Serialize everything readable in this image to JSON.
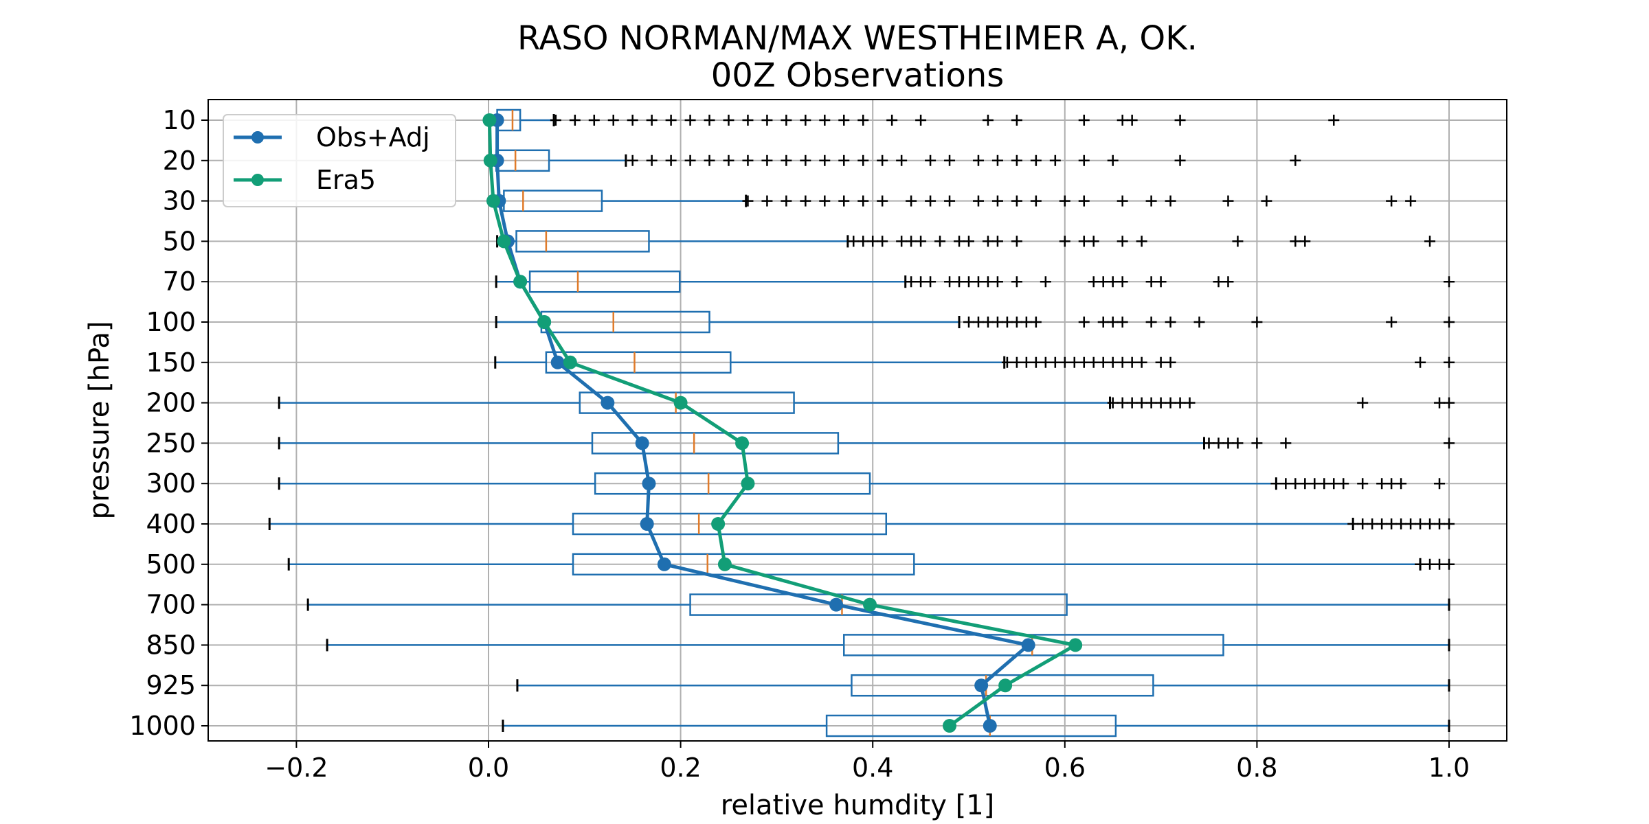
{
  "chart_data": {
    "type": "box",
    "orientation": "horizontal",
    "title": "RASO NORMAN/MAX WESTHEIMER A, OK.",
    "subtitle": "00Z Observations",
    "xlabel": "relative humdity [1]",
    "ylabel": "pressure [hPa]",
    "xlim": [
      -0.29,
      1.06
    ],
    "xticks": [
      -0.2,
      0.0,
      0.2,
      0.4,
      0.6,
      0.8,
      1.0
    ],
    "xtick_labels": [
      "−0.2",
      "0.0",
      "0.2",
      "0.4",
      "0.6",
      "0.8",
      "1.0"
    ],
    "levels": [
      "10",
      "20",
      "30",
      "50",
      "70",
      "100",
      "150",
      "200",
      "250",
      "300",
      "400",
      "500",
      "700",
      "850",
      "925",
      "1000"
    ],
    "grid": true,
    "legend_position": "top-left",
    "colors": {
      "box": "#1f6fb0",
      "median": "#e07b2a",
      "obs": "#1f6fb0",
      "era5": "#129e77",
      "flier": "#000000"
    },
    "boxes": [
      {
        "level": "10",
        "whisker_low": 0.002,
        "q1": 0.009,
        "median": 0.025,
        "q3": 0.033,
        "whisker_high": 0.068,
        "fliers": [
          0.07,
          0.09,
          0.11,
          0.13,
          0.15,
          0.17,
          0.19,
          0.21,
          0.23,
          0.25,
          0.27,
          0.29,
          0.31,
          0.33,
          0.35,
          0.37,
          0.39,
          0.42,
          0.45,
          0.52,
          0.55,
          0.62,
          0.66,
          0.67,
          0.72,
          0.88
        ]
      },
      {
        "level": "20",
        "whisker_low": 0.003,
        "q1": 0.008,
        "median": 0.028,
        "q3": 0.063,
        "whisker_high": 0.143,
        "fliers": [
          0.15,
          0.17,
          0.19,
          0.21,
          0.23,
          0.25,
          0.27,
          0.29,
          0.31,
          0.33,
          0.35,
          0.37,
          0.39,
          0.41,
          0.43,
          0.46,
          0.48,
          0.51,
          0.53,
          0.55,
          0.57,
          0.59,
          0.62,
          0.65,
          0.72,
          0.84
        ]
      },
      {
        "level": "30",
        "whisker_low": 0.005,
        "q1": 0.016,
        "median": 0.036,
        "q3": 0.118,
        "whisker_high": 0.268,
        "fliers": [
          0.27,
          0.29,
          0.31,
          0.33,
          0.35,
          0.37,
          0.39,
          0.41,
          0.44,
          0.46,
          0.48,
          0.51,
          0.53,
          0.55,
          0.57,
          0.6,
          0.62,
          0.66,
          0.69,
          0.71,
          0.77,
          0.81,
          0.94,
          0.96
        ]
      },
      {
        "level": "50",
        "whisker_low": 0.009,
        "q1": 0.029,
        "median": 0.06,
        "q3": 0.167,
        "whisker_high": 0.374,
        "fliers": [
          0.38,
          0.39,
          0.4,
          0.41,
          0.43,
          0.44,
          0.45,
          0.47,
          0.49,
          0.5,
          0.52,
          0.53,
          0.55,
          0.6,
          0.62,
          0.63,
          0.66,
          0.68,
          0.78,
          0.84,
          0.85,
          0.98
        ]
      },
      {
        "level": "70",
        "whisker_low": 0.008,
        "q1": 0.043,
        "median": 0.093,
        "q3": 0.199,
        "whisker_high": 0.434,
        "fliers": [
          0.44,
          0.45,
          0.46,
          0.48,
          0.49,
          0.5,
          0.51,
          0.52,
          0.53,
          0.55,
          0.58,
          0.63,
          0.64,
          0.65,
          0.66,
          0.69,
          0.7,
          0.76,
          0.77,
          1.0
        ]
      },
      {
        "level": "100",
        "whisker_low": 0.008,
        "q1": 0.055,
        "median": 0.13,
        "q3": 0.23,
        "whisker_high": 0.49,
        "fliers": [
          0.5,
          0.51,
          0.52,
          0.53,
          0.54,
          0.55,
          0.56,
          0.57,
          0.62,
          0.64,
          0.65,
          0.66,
          0.69,
          0.71,
          0.74,
          0.8,
          0.94,
          1.0
        ]
      },
      {
        "level": "150",
        "whisker_low": 0.007,
        "q1": 0.06,
        "median": 0.152,
        "q3": 0.252,
        "whisker_high": 0.537,
        "fliers": [
          0.54,
          0.55,
          0.56,
          0.57,
          0.58,
          0.59,
          0.6,
          0.61,
          0.62,
          0.63,
          0.64,
          0.65,
          0.66,
          0.67,
          0.68,
          0.7,
          0.71,
          0.97,
          1.0
        ]
      },
      {
        "level": "200",
        "whisker_low": -0.218,
        "q1": 0.095,
        "median": 0.195,
        "q3": 0.318,
        "whisker_high": 0.647,
        "fliers": [
          0.65,
          0.66,
          0.67,
          0.68,
          0.69,
          0.7,
          0.71,
          0.72,
          0.73,
          0.91,
          0.99,
          1.0
        ]
      },
      {
        "level": "250",
        "whisker_low": -0.218,
        "q1": 0.108,
        "median": 0.214,
        "q3": 0.364,
        "whisker_high": 0.745,
        "fliers": [
          0.75,
          0.76,
          0.77,
          0.78,
          0.8,
          0.83,
          1.0
        ]
      },
      {
        "level": "300",
        "whisker_low": -0.218,
        "q1": 0.111,
        "median": 0.229,
        "q3": 0.397,
        "whisker_high": 0.82,
        "fliers": [
          0.82,
          0.83,
          0.84,
          0.85,
          0.86,
          0.87,
          0.88,
          0.89,
          0.91,
          0.93,
          0.94,
          0.95,
          0.99
        ]
      },
      {
        "level": "400",
        "whisker_low": -0.228,
        "q1": 0.088,
        "median": 0.219,
        "q3": 0.414,
        "whisker_high": 0.9,
        "fliers": [
          0.9,
          0.91,
          0.92,
          0.93,
          0.94,
          0.95,
          0.96,
          0.97,
          0.98,
          0.99,
          1.0
        ]
      },
      {
        "level": "500",
        "whisker_low": -0.208,
        "q1": 0.088,
        "median": 0.228,
        "q3": 0.443,
        "whisker_high": 0.97,
        "fliers": [
          0.97,
          0.98,
          0.99,
          1.0
        ]
      },
      {
        "level": "700",
        "whisker_low": -0.188,
        "q1": 0.21,
        "median": 0.368,
        "q3": 0.602,
        "whisker_high": 1.0,
        "fliers": []
      },
      {
        "level": "850",
        "whisker_low": -0.168,
        "q1": 0.37,
        "median": 0.566,
        "q3": 0.765,
        "whisker_high": 1.0,
        "fliers": []
      },
      {
        "level": "925",
        "whisker_low": 0.03,
        "q1": 0.378,
        "median": 0.518,
        "q3": 0.692,
        "whisker_high": 1.0,
        "fliers": []
      },
      {
        "level": "1000",
        "whisker_low": 0.015,
        "q1": 0.352,
        "median": 0.522,
        "q3": 0.653,
        "whisker_high": 1.0,
        "fliers": []
      }
    ],
    "series": [
      {
        "name": "Obs+Adj",
        "values": [
          0.009,
          0.009,
          0.011,
          0.02,
          0.033,
          0.058,
          0.072,
          0.124,
          0.16,
          0.167,
          0.165,
          0.183,
          0.362,
          0.562,
          0.513,
          0.522
        ]
      },
      {
        "name": "Era5",
        "values": [
          0.001,
          0.002,
          0.005,
          0.016,
          0.033,
          0.058,
          0.085,
          0.2,
          0.264,
          0.27,
          0.239,
          0.246,
          0.397,
          0.611,
          0.538,
          0.48
        ]
      }
    ]
  }
}
